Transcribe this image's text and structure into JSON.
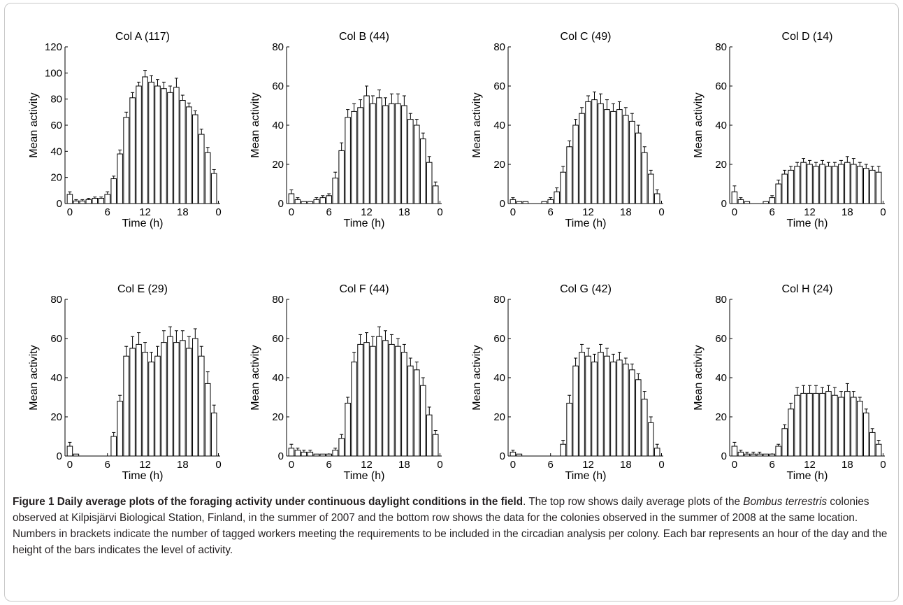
{
  "chart_data": [
    {
      "type": "bar",
      "title": "Col A (117)",
      "xlabel": "Time (h)",
      "ylabel": "Mean activity",
      "ylim": [
        0,
        120
      ],
      "yticks": [
        0,
        20,
        40,
        60,
        80,
        100,
        120
      ],
      "xticks": [
        "0",
        "6",
        "12",
        "18",
        "0"
      ],
      "x": [
        0,
        1,
        2,
        3,
        4,
        5,
        6,
        7,
        8,
        9,
        10,
        11,
        12,
        13,
        14,
        15,
        16,
        17,
        18,
        19,
        20,
        21,
        22,
        23
      ],
      "values": [
        7,
        2,
        2,
        3,
        4,
        4,
        7,
        19,
        38,
        66,
        81,
        90,
        97,
        93,
        90,
        88,
        85,
        89,
        79,
        74,
        68,
        53,
        39,
        23
      ],
      "errors": [
        2,
        1,
        1,
        1,
        1,
        1,
        2,
        2,
        3,
        4,
        4,
        3,
        5,
        5,
        5,
        5,
        5,
        7,
        4,
        3,
        3,
        4,
        4,
        3
      ]
    },
    {
      "type": "bar",
      "title": "Col B (44)",
      "xlabel": "Time (h)",
      "ylabel": "Mean activity",
      "ylim": [
        0,
        80
      ],
      "yticks": [
        0,
        20,
        40,
        60,
        80
      ],
      "xticks": [
        "0",
        "6",
        "12",
        "18",
        "0"
      ],
      "x": [
        0,
        1,
        2,
        3,
        4,
        5,
        6,
        7,
        8,
        9,
        10,
        11,
        12,
        13,
        14,
        15,
        16,
        17,
        18,
        19,
        20,
        21,
        22,
        23
      ],
      "values": [
        5,
        2,
        1,
        1,
        2,
        3,
        4,
        13,
        27,
        44,
        47,
        49,
        55,
        51,
        54,
        50,
        51,
        51,
        50,
        43,
        40,
        33,
        21,
        9
      ],
      "errors": [
        2,
        1,
        0,
        0,
        1,
        1,
        1,
        3,
        4,
        4,
        4,
        4,
        5,
        4,
        4,
        4,
        5,
        5,
        5,
        3,
        3,
        3,
        3,
        2
      ]
    },
    {
      "type": "bar",
      "title": "Col C (49)",
      "xlabel": "Time (h)",
      "ylabel": "Mean activity",
      "ylim": [
        0,
        80
      ],
      "yticks": [
        0,
        20,
        40,
        60,
        80
      ],
      "xticks": [
        "0",
        "6",
        "12",
        "18",
        "0"
      ],
      "x": [
        0,
        1,
        2,
        3,
        4,
        5,
        6,
        7,
        8,
        9,
        10,
        11,
        12,
        13,
        14,
        15,
        16,
        17,
        18,
        19,
        20,
        21,
        22,
        23
      ],
      "values": [
        2,
        1,
        1,
        0,
        0,
        1,
        2,
        6,
        16,
        29,
        40,
        46,
        52,
        53,
        51,
        48,
        47,
        48,
        45,
        42,
        36,
        26,
        15,
        5
      ],
      "errors": [
        1,
        0,
        0,
        0,
        0,
        0,
        1,
        2,
        3,
        3,
        3,
        3,
        3,
        4,
        5,
        5,
        4,
        4,
        4,
        4,
        4,
        3,
        2,
        2
      ]
    },
    {
      "type": "bar",
      "title": "Col D (14)",
      "xlabel": "Time (h)",
      "ylabel": "Mean activity",
      "ylim": [
        0,
        80
      ],
      "yticks": [
        0,
        20,
        40,
        60,
        80
      ],
      "xticks": [
        "0",
        "6",
        "12",
        "18",
        "0"
      ],
      "x": [
        0,
        1,
        2,
        3,
        4,
        5,
        6,
        7,
        8,
        9,
        10,
        11,
        12,
        13,
        14,
        15,
        16,
        17,
        18,
        19,
        20,
        21,
        22,
        23
      ],
      "values": [
        6,
        2,
        1,
        0,
        0,
        1,
        3,
        10,
        15,
        17,
        19,
        21,
        20,
        19,
        20,
        19,
        19,
        20,
        21,
        20,
        19,
        18,
        17,
        16
      ],
      "errors": [
        3,
        1,
        0,
        0,
        0,
        0,
        1,
        2,
        2,
        2,
        2,
        2,
        2,
        2,
        2,
        2,
        2,
        2,
        3,
        3,
        2,
        2,
        2,
        3
      ]
    },
    {
      "type": "bar",
      "title": "Col E (29)",
      "xlabel": "Time (h)",
      "ylabel": "Mean activity",
      "ylim": [
        0,
        80
      ],
      "yticks": [
        0,
        20,
        40,
        60,
        80
      ],
      "xticks": [
        "0",
        "6",
        "12",
        "18",
        "0"
      ],
      "x": [
        0,
        1,
        2,
        3,
        4,
        5,
        6,
        7,
        8,
        9,
        10,
        11,
        12,
        13,
        14,
        15,
        16,
        17,
        18,
        19,
        20,
        21,
        22,
        23
      ],
      "values": [
        5,
        1,
        0,
        0,
        0,
        0,
        0,
        10,
        28,
        51,
        55,
        57,
        53,
        48,
        51,
        58,
        61,
        58,
        59,
        55,
        60,
        51,
        37,
        22
      ],
      "errors": [
        2,
        0,
        0,
        0,
        0,
        0,
        0,
        2,
        3,
        5,
        6,
        6,
        5,
        5,
        5,
        6,
        5,
        6,
        5,
        6,
        5,
        5,
        6,
        4
      ]
    },
    {
      "type": "bar",
      "title": "Col F (44)",
      "xlabel": "Time (h)",
      "ylabel": "Mean activity",
      "ylim": [
        0,
        80
      ],
      "yticks": [
        0,
        20,
        40,
        60,
        80
      ],
      "xticks": [
        "0",
        "6",
        "12",
        "18",
        "0"
      ],
      "x": [
        0,
        1,
        2,
        3,
        4,
        5,
        6,
        7,
        8,
        9,
        10,
        11,
        12,
        13,
        14,
        15,
        16,
        17,
        18,
        19,
        20,
        21,
        22,
        23
      ],
      "values": [
        4,
        3,
        2,
        2,
        1,
        1,
        1,
        3,
        9,
        27,
        48,
        57,
        58,
        56,
        61,
        59,
        57,
        56,
        53,
        46,
        44,
        36,
        21,
        11
      ],
      "errors": [
        2,
        1,
        1,
        1,
        0,
        0,
        0,
        1,
        2,
        3,
        5,
        5,
        5,
        5,
        5,
        5,
        5,
        4,
        4,
        4,
        4,
        4,
        4,
        2
      ]
    },
    {
      "type": "bar",
      "title": "Col G (42)",
      "xlabel": "Time (h)",
      "ylabel": "Mean activity",
      "ylim": [
        0,
        80
      ],
      "yticks": [
        0,
        20,
        40,
        60,
        80
      ],
      "xticks": [
        "0",
        "6",
        "12",
        "18",
        "0"
      ],
      "x": [
        0,
        1,
        2,
        3,
        4,
        5,
        6,
        7,
        8,
        9,
        10,
        11,
        12,
        13,
        14,
        15,
        16,
        17,
        18,
        19,
        20,
        21,
        22,
        23
      ],
      "values": [
        2,
        1,
        0,
        0,
        0,
        0,
        0,
        0,
        6,
        27,
        46,
        53,
        51,
        48,
        53,
        51,
        48,
        49,
        47,
        44,
        39,
        29,
        17,
        4
      ],
      "errors": [
        1,
        0,
        0,
        0,
        0,
        0,
        0,
        0,
        2,
        4,
        4,
        4,
        4,
        4,
        4,
        4,
        4,
        4,
        3,
        3,
        3,
        4,
        3,
        2
      ]
    },
    {
      "type": "bar",
      "title": "Col H (24)",
      "xlabel": "Time (h)",
      "ylabel": "Mean activity",
      "ylim": [
        0,
        80
      ],
      "yticks": [
        0,
        20,
        40,
        60,
        80
      ],
      "xticks": [
        "0",
        "6",
        "12",
        "18",
        "0"
      ],
      "x": [
        0,
        1,
        2,
        3,
        4,
        5,
        6,
        7,
        8,
        9,
        10,
        11,
        12,
        13,
        14,
        15,
        16,
        17,
        18,
        19,
        20,
        21,
        22,
        23
      ],
      "values": [
        5,
        2,
        1,
        1,
        1,
        1,
        1,
        5,
        14,
        24,
        31,
        32,
        32,
        32,
        32,
        33,
        31,
        30,
        33,
        30,
        28,
        22,
        12,
        6
      ],
      "errors": [
        2,
        1,
        1,
        1,
        1,
        0,
        0,
        1,
        2,
        3,
        4,
        4,
        4,
        4,
        3,
        3,
        4,
        3,
        4,
        3,
        2,
        2,
        2,
        2
      ]
    }
  ],
  "caption": {
    "label": "Figure 1",
    "heading": " Daily average plots of the foraging activity under continuous daylight conditions in the field",
    "part1": ". The top row shows daily average plots of the ",
    "species": "Bombus terrestris",
    "part2": " colonies observed at Kilpisjärvi Biological Station, Finland, in the summer of 2007 and the bottom row shows the data for the colonies observed in the summer of 2008 at the same location. Numbers in brackets indicate the number of tagged workers meeting the requirements to be included in the circadian analysis per colony. Each bar represents an hour of the day and the height of the bars indicates the level of activity."
  }
}
